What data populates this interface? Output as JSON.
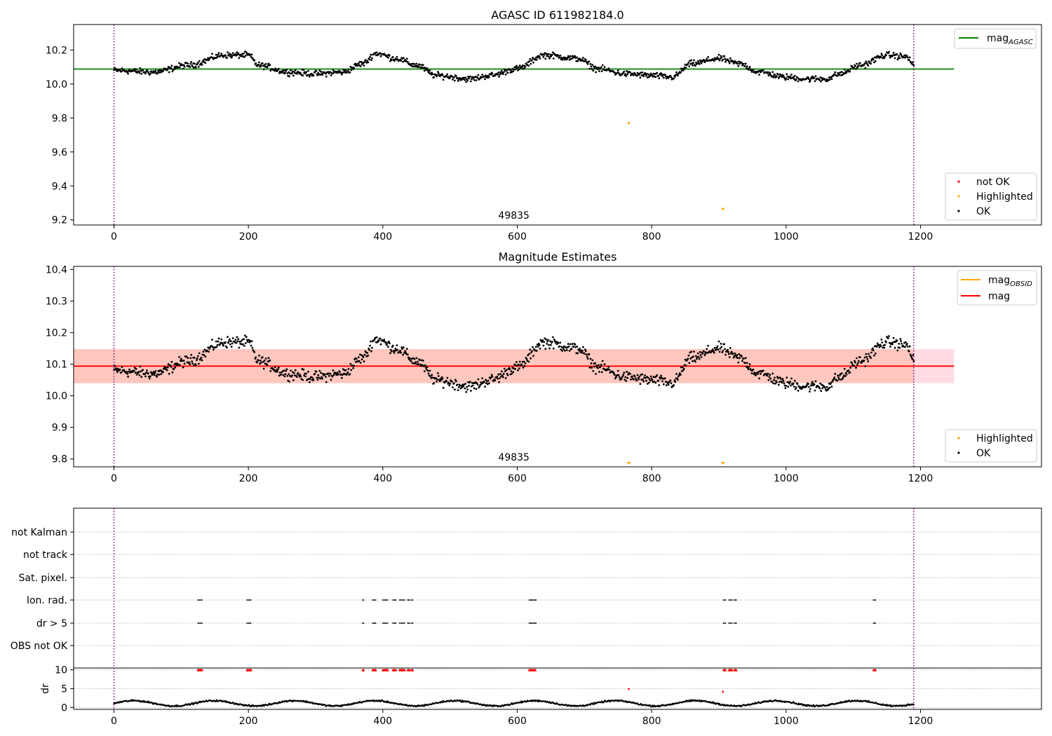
{
  "chart_data": [
    {
      "type": "scatter",
      "title": "AGASC ID 611982184.0",
      "xlim": [
        -60,
        1380
      ],
      "ylim": [
        9.17,
        10.35
      ],
      "xticks": [
        "0",
        "200",
        "400",
        "600",
        "800",
        "1000",
        "1200"
      ],
      "yticks": [
        "9.2",
        "9.4",
        "9.6",
        "9.8",
        "10.0",
        "10.2"
      ],
      "ytick_values": [
        9.2,
        9.4,
        9.6,
        9.8,
        10.0,
        10.2
      ],
      "obsid_boundaries": [
        0,
        1190
      ],
      "obsid_label": {
        "text": "49835",
        "x": 595
      },
      "mag_agasc": 10.088,
      "mag_line_x": [
        -60,
        1250
      ],
      "legend_lines": [
        "mag",
        "AGASC"
      ],
      "legend_points": [
        "not OK",
        "Highlighted",
        "OK"
      ],
      "highlighted_points": [
        {
          "x": 766,
          "y": 9.77
        },
        {
          "x": 906,
          "y": 9.265
        }
      ],
      "series_note": "OK points: ~1190 per-sample magnitude estimates oscillating between ~9.98 and ~10.23"
    },
    {
      "type": "scatter",
      "title": "Magnitude Estimates",
      "xlim": [
        -60,
        1380
      ],
      "ylim": [
        9.775,
        10.41
      ],
      "xticks": [
        "0",
        "200",
        "400",
        "600",
        "800",
        "1000",
        "1200"
      ],
      "yticks": [
        "9.8",
        "9.9",
        "10.0",
        "10.1",
        "10.2",
        "10.3",
        "10.4"
      ],
      "ytick_values": [
        9.8,
        9.9,
        10.0,
        10.1,
        10.2,
        10.3,
        10.4
      ],
      "obsid_label": {
        "text": "49835",
        "x": 595
      },
      "mag": 10.094,
      "mag_band": [
        10.04,
        10.148
      ],
      "mag_obsid_band": [
        10.04,
        10.148
      ],
      "mag_obsid_band_x": [
        -60,
        1190
      ],
      "mag_band_x": [
        -60,
        1250
      ],
      "legend_lines": [
        [
          "mag",
          "OBSID"
        ],
        [
          "mag",
          ""
        ]
      ],
      "legend_points": [
        "Highlighted",
        "OK"
      ],
      "highlighted_points": [
        {
          "x": 766,
          "y": 9.78
        },
        {
          "x": 906,
          "y": 9.78
        }
      ]
    },
    {
      "type": "scatter",
      "title": "",
      "xlim": [
        -60,
        1380
      ],
      "flags": [
        "not Kalman",
        "not track",
        "Sat. pixel.",
        "Ion. rad.",
        "dr > 5",
        "OBS not OK"
      ],
      "flag_clusters": [
        [
          125,
          132
        ],
        [
          198,
          205
        ],
        [
          370,
          372
        ],
        [
          385,
          390
        ],
        [
          400,
          408
        ],
        [
          415,
          420
        ],
        [
          425,
          433
        ],
        [
          437,
          440
        ],
        [
          443,
          445
        ],
        [
          618,
          628
        ],
        [
          907,
          911
        ],
        [
          915,
          920
        ],
        [
          923,
          926
        ],
        [
          1130,
          1134
        ]
      ],
      "dr_ylabel": "dr",
      "dr_yticks": [
        "0",
        "5",
        "10"
      ],
      "dr_ytick_values": [
        0,
        5,
        10
      ],
      "dr_ylim": [
        -0.5,
        10.5
      ],
      "dr_outliers": [
        {
          "x": 766,
          "y": 4.9
        },
        {
          "x": 906,
          "y": 4.2
        }
      ],
      "xticks": [
        "0",
        "200",
        "400",
        "600",
        "800",
        "1000",
        "1200"
      ]
    }
  ],
  "colors": {
    "ok": "#000000",
    "highlighted": "#ffa500",
    "not_ok": "#ff0000",
    "agasc_line": "#008000",
    "mag_line": "#ff0000",
    "obsid_line": "#ffa500",
    "band_outer": "#ffc0cb",
    "band_inner": "#ffa07a",
    "boundary": "#800080",
    "grid": "#b0b0b0"
  }
}
